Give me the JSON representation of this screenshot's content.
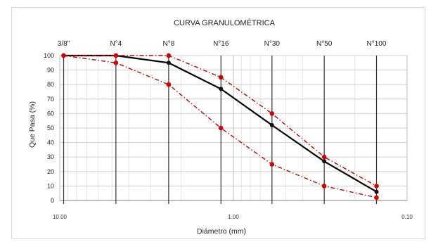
{
  "chart_data": {
    "type": "line",
    "title": "CURVA GRANULOMÉTRICA",
    "xlabel": "Diámetro (mm)",
    "ylabel": "Que Pasa (%)",
    "x_scale": "log",
    "x_reversed": true,
    "xlim": [
      10.0,
      0.1
    ],
    "ylim": [
      0,
      100
    ],
    "y_ticks": [
      0,
      10,
      20,
      30,
      40,
      50,
      60,
      70,
      80,
      90,
      100
    ],
    "x_tick_labels": [
      "10.00",
      "1.00",
      "0.10"
    ],
    "x_tick_values": [
      10.0,
      1.0,
      0.1
    ],
    "sieves": [
      "3/8\"",
      "N°4",
      "N°8",
      "N°16",
      "N°30",
      "N°50",
      "N°100"
    ],
    "sieve_diameters": [
      9.5,
      4.75,
      2.36,
      1.18,
      0.6,
      0.3,
      0.15
    ],
    "grid": true,
    "series": [
      {
        "color": "#000000",
        "style": "solid",
        "values": [
          100,
          100,
          95,
          77,
          52,
          27,
          6
        ]
      },
      {
        "color": "#c00000",
        "style": "dashdot",
        "values": [
          100,
          100,
          100,
          85,
          60,
          30,
          10
        ]
      },
      {
        "color": "#c00000",
        "style": "dashdot",
        "values": [
          100,
          95,
          80,
          50,
          25,
          10,
          2
        ]
      }
    ]
  }
}
